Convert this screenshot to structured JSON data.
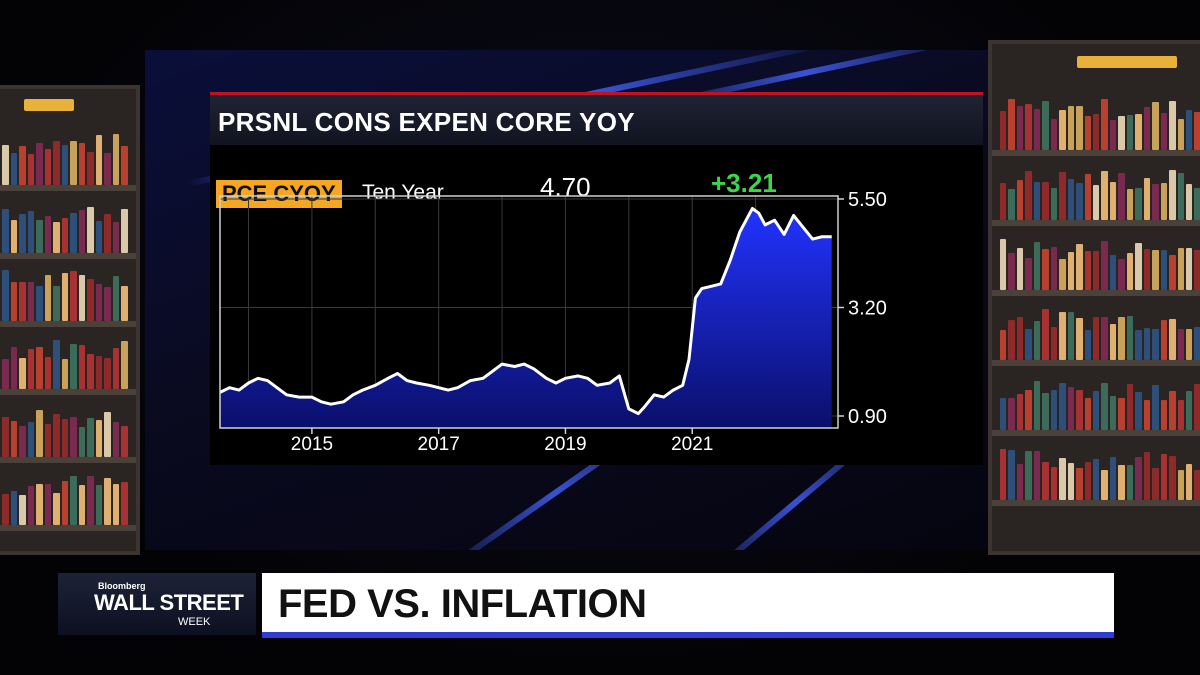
{
  "chart_data": {
    "type": "area",
    "title": "PRSNL CONS EXPEN CORE YOY",
    "legend": {
      "ticker": "PCE CYOY",
      "period": "Ten Year"
    },
    "last_value": "4.70",
    "change": "+3.21",
    "x_tick_labels": [
      "2015",
      "2017",
      "2019",
      "2021"
    ],
    "y_tick_labels": [
      "5.50",
      "3.20",
      "0.90"
    ],
    "ylim": [
      0.9,
      5.5
    ],
    "xlim": [
      2013.55,
      2023.3
    ],
    "grid": true,
    "series": [
      {
        "x": [
          2013.55,
          2013.7,
          2013.85,
          2014.0,
          2014.15,
          2014.3,
          2014.45,
          2014.6,
          2014.8,
          2015.0,
          2015.15,
          2015.3,
          2015.5,
          2015.65,
          2015.8,
          2016.0,
          2016.2,
          2016.35,
          2016.5,
          2016.65,
          2016.85,
          2017.0,
          2017.15,
          2017.3,
          2017.5,
          2017.7,
          2017.85,
          2018.0,
          2018.2,
          2018.35,
          2018.5,
          2018.7,
          2018.85,
          2019.0,
          2019.2,
          2019.35,
          2019.5,
          2019.7,
          2019.85,
          2020.0,
          2020.15,
          2020.25,
          2020.4,
          2020.55,
          2020.7,
          2020.85,
          2020.95,
          2021.05,
          2021.15,
          2021.3,
          2021.45,
          2021.6,
          2021.75,
          2021.85,
          2021.95,
          2022.05,
          2022.15,
          2022.3,
          2022.45,
          2022.6,
          2022.75,
          2022.9,
          2023.05,
          2023.2
        ],
        "values": [
          1.4,
          1.5,
          1.45,
          1.6,
          1.7,
          1.65,
          1.5,
          1.35,
          1.3,
          1.3,
          1.2,
          1.15,
          1.2,
          1.35,
          1.45,
          1.55,
          1.7,
          1.8,
          1.65,
          1.6,
          1.55,
          1.5,
          1.45,
          1.5,
          1.65,
          1.7,
          1.85,
          2.0,
          1.95,
          2.0,
          1.9,
          1.7,
          1.6,
          1.7,
          1.75,
          1.7,
          1.55,
          1.6,
          1.75,
          1.05,
          0.95,
          1.1,
          1.35,
          1.3,
          1.45,
          1.55,
          2.1,
          3.4,
          3.6,
          3.65,
          3.7,
          4.2,
          4.8,
          5.05,
          5.3,
          5.2,
          4.95,
          5.05,
          4.75,
          5.15,
          4.9,
          4.65,
          4.7,
          4.7
        ]
      }
    ]
  },
  "lower_third": {
    "brand_small": "Bloomberg",
    "brand_main": "WALL STREET",
    "brand_week": "WEEK",
    "headline": "FED VS. INFLATION"
  },
  "colors": {
    "accent_orange": "#f5a623",
    "change_green": "#3bd64a",
    "area_blue": "#1f2ee8",
    "title_red": "#c1121f"
  }
}
